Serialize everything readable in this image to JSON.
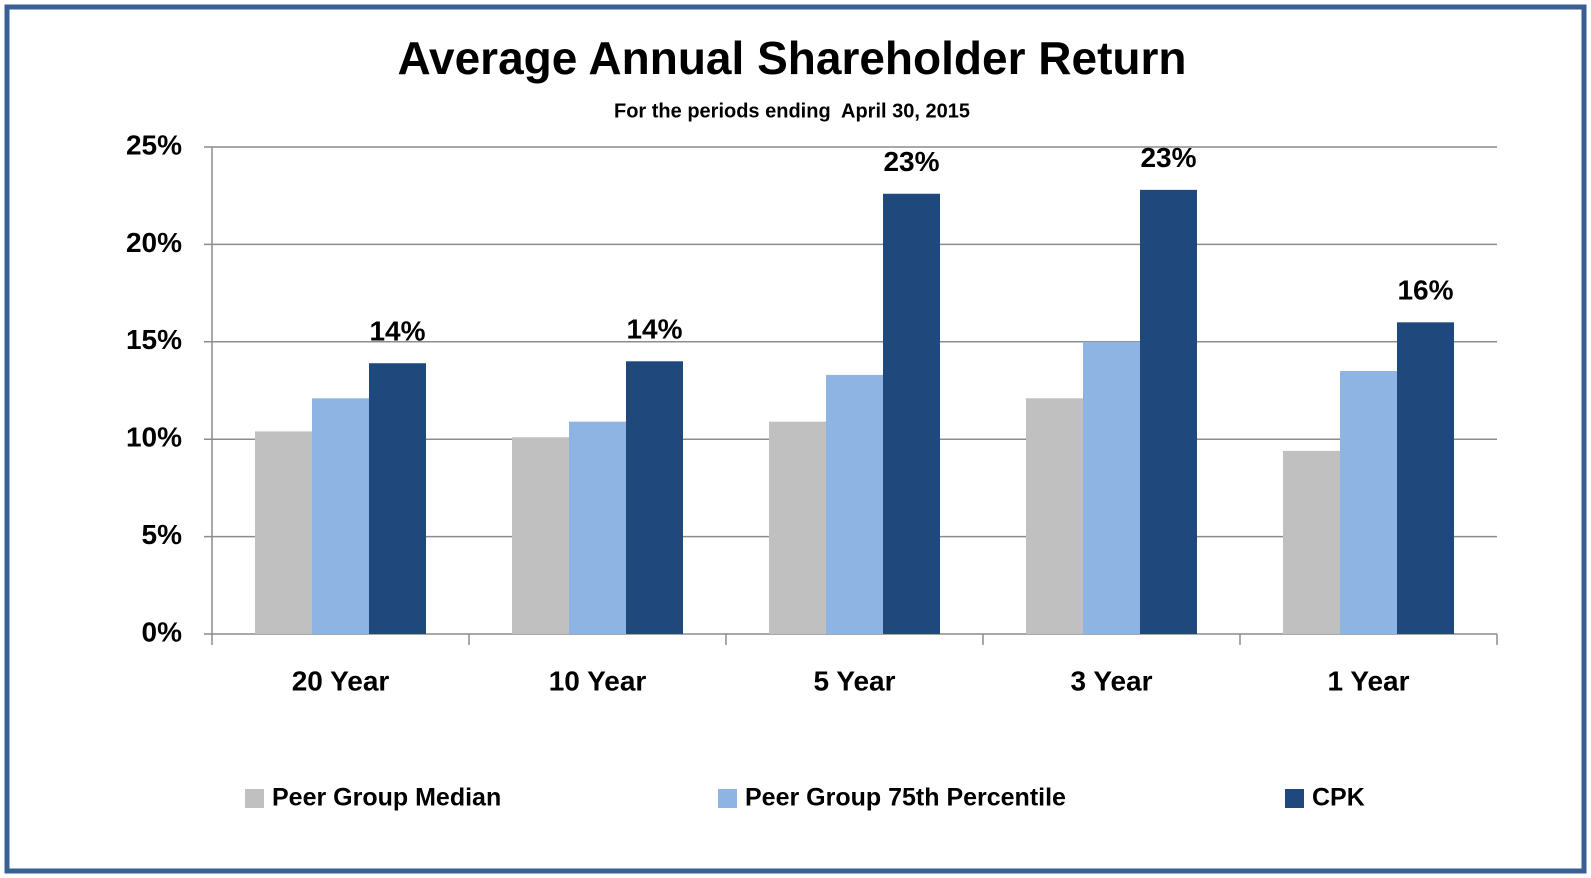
{
  "chart_data": {
    "type": "bar",
    "title": "Average Annual Shareholder Return",
    "subtitle": "For the periods ending  April 30, 2015",
    "categories": [
      "20 Year",
      "10 Year",
      "5 Year",
      "3 Year",
      "1 Year"
    ],
    "series": [
      {
        "name": "Peer Group Median",
        "color": "#c0c0c0",
        "values": [
          10.4,
          10.1,
          10.9,
          12.1,
          9.4
        ]
      },
      {
        "name": "Peer Group 75th Percentile",
        "color": "#8eb4e3",
        "values": [
          12.1,
          10.9,
          13.3,
          15.0,
          13.5
        ]
      },
      {
        "name": "CPK",
        "color": "#1f497d",
        "values": [
          13.9,
          14.0,
          22.6,
          22.8,
          16.0
        ],
        "value_labels": [
          "14%",
          "14%",
          "23%",
          "23%",
          "16%"
        ]
      }
    ],
    "ylim": [
      0,
      25
    ],
    "yticks": [
      {
        "value": 0,
        "label": "0%"
      },
      {
        "value": 5,
        "label": "5%"
      },
      {
        "value": 10,
        "label": "10%"
      },
      {
        "value": 15,
        "label": "15%"
      },
      {
        "value": 20,
        "label": "20%"
      },
      {
        "value": 25,
        "label": "25%"
      }
    ],
    "grid": true,
    "legend": "bottom"
  }
}
